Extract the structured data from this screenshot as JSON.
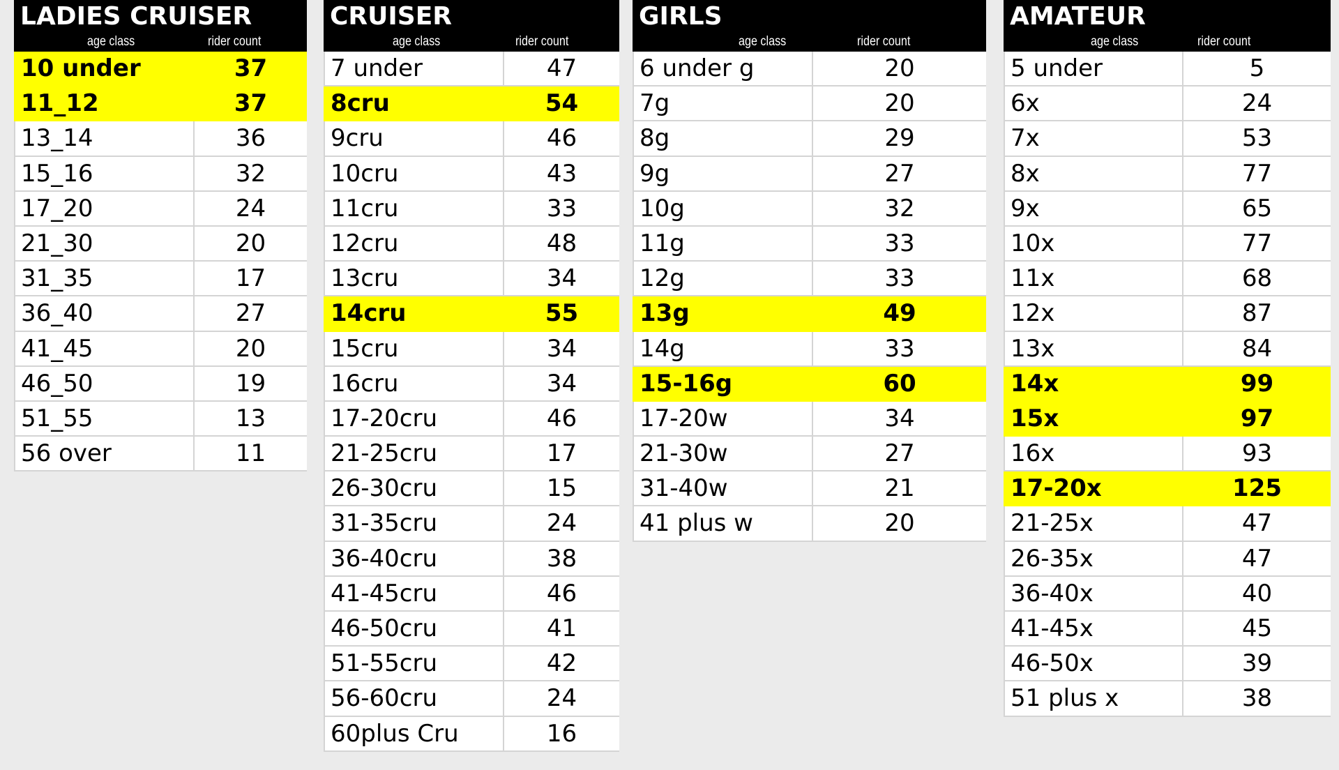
{
  "colors": {
    "header_bg": "#000000",
    "header_text": "#ffffff",
    "highlight": "#ffff00",
    "background": "#ebebeb"
  },
  "column_labels": {
    "age_class": "age class",
    "rider_count": "rider count"
  },
  "tables": [
    {
      "title": "LADIES CRUISER",
      "rows": [
        {
          "age_class": "10 under",
          "rider_count": "37",
          "highlighted": true
        },
        {
          "age_class": "11_12",
          "rider_count": "37",
          "highlighted": true
        },
        {
          "age_class": "13_14",
          "rider_count": "36"
        },
        {
          "age_class": "15_16",
          "rider_count": "32"
        },
        {
          "age_class": "17_20",
          "rider_count": "24"
        },
        {
          "age_class": "21_30",
          "rider_count": "20"
        },
        {
          "age_class": "31_35",
          "rider_count": "17"
        },
        {
          "age_class": "36_40",
          "rider_count": "27"
        },
        {
          "age_class": "41_45",
          "rider_count": "20"
        },
        {
          "age_class": "46_50",
          "rider_count": "19"
        },
        {
          "age_class": "51_55",
          "rider_count": "13"
        },
        {
          "age_class": "56 over",
          "rider_count": "11"
        }
      ]
    },
    {
      "title": "CRUISER",
      "rows": [
        {
          "age_class": "7 under",
          "rider_count": "47"
        },
        {
          "age_class": "8cru",
          "rider_count": "54",
          "highlighted": true
        },
        {
          "age_class": "9cru",
          "rider_count": "46"
        },
        {
          "age_class": "10cru",
          "rider_count": "43"
        },
        {
          "age_class": "11cru",
          "rider_count": "33"
        },
        {
          "age_class": "12cru",
          "rider_count": "48"
        },
        {
          "age_class": "13cru",
          "rider_count": "34"
        },
        {
          "age_class": "14cru",
          "rider_count": "55",
          "highlighted": true
        },
        {
          "age_class": "15cru",
          "rider_count": "34"
        },
        {
          "age_class": "16cru",
          "rider_count": "34"
        },
        {
          "age_class": "17-20cru",
          "rider_count": "46"
        },
        {
          "age_class": "21-25cru",
          "rider_count": "17"
        },
        {
          "age_class": "26-30cru",
          "rider_count": "15"
        },
        {
          "age_class": "31-35cru",
          "rider_count": "24"
        },
        {
          "age_class": "36-40cru",
          "rider_count": "38"
        },
        {
          "age_class": "41-45cru",
          "rider_count": "46"
        },
        {
          "age_class": "46-50cru",
          "rider_count": "41"
        },
        {
          "age_class": "51-55cru",
          "rider_count": "42"
        },
        {
          "age_class": "56-60cru",
          "rider_count": "24"
        },
        {
          "age_class": "60plus Cru",
          "rider_count": "16"
        }
      ]
    },
    {
      "title": "GIRLS",
      "rows": [
        {
          "age_class": "6 under g",
          "rider_count": "20"
        },
        {
          "age_class": "7g",
          "rider_count": "20"
        },
        {
          "age_class": "8g",
          "rider_count": "29"
        },
        {
          "age_class": "9g",
          "rider_count": "27"
        },
        {
          "age_class": "10g",
          "rider_count": "32"
        },
        {
          "age_class": "11g",
          "rider_count": "33"
        },
        {
          "age_class": "12g",
          "rider_count": "33"
        },
        {
          "age_class": "13g",
          "rider_count": "49",
          "highlighted": true
        },
        {
          "age_class": "14g",
          "rider_count": "33"
        },
        {
          "age_class": "15-16g",
          "rider_count": "60",
          "highlighted": true
        },
        {
          "age_class": "17-20w",
          "rider_count": "34"
        },
        {
          "age_class": "21-30w",
          "rider_count": "27"
        },
        {
          "age_class": "31-40w",
          "rider_count": "21"
        },
        {
          "age_class": "41 plus w",
          "rider_count": "20"
        }
      ]
    },
    {
      "title": "AMATEUR",
      "rows": [
        {
          "age_class": "5 under",
          "rider_count": "5"
        },
        {
          "age_class": "6x",
          "rider_count": "24"
        },
        {
          "age_class": "7x",
          "rider_count": "53"
        },
        {
          "age_class": "8x",
          "rider_count": "77"
        },
        {
          "age_class": "9x",
          "rider_count": "65"
        },
        {
          "age_class": "10x",
          "rider_count": "77"
        },
        {
          "age_class": "11x",
          "rider_count": "68"
        },
        {
          "age_class": "12x",
          "rider_count": "87"
        },
        {
          "age_class": "13x",
          "rider_count": "84"
        },
        {
          "age_class": "14x",
          "rider_count": "99",
          "highlighted": true
        },
        {
          "age_class": "15x",
          "rider_count": "97",
          "highlighted": true
        },
        {
          "age_class": "16x",
          "rider_count": "93"
        },
        {
          "age_class": "17-20x",
          "rider_count": "125",
          "highlighted": true
        },
        {
          "age_class": "21-25x",
          "rider_count": "47"
        },
        {
          "age_class": "26-35x",
          "rider_count": "47"
        },
        {
          "age_class": "36-40x",
          "rider_count": "40"
        },
        {
          "age_class": "41-45x",
          "rider_count": "45"
        },
        {
          "age_class": "46-50x",
          "rider_count": "39"
        },
        {
          "age_class": "51 plus x",
          "rider_count": "38"
        }
      ]
    }
  ]
}
